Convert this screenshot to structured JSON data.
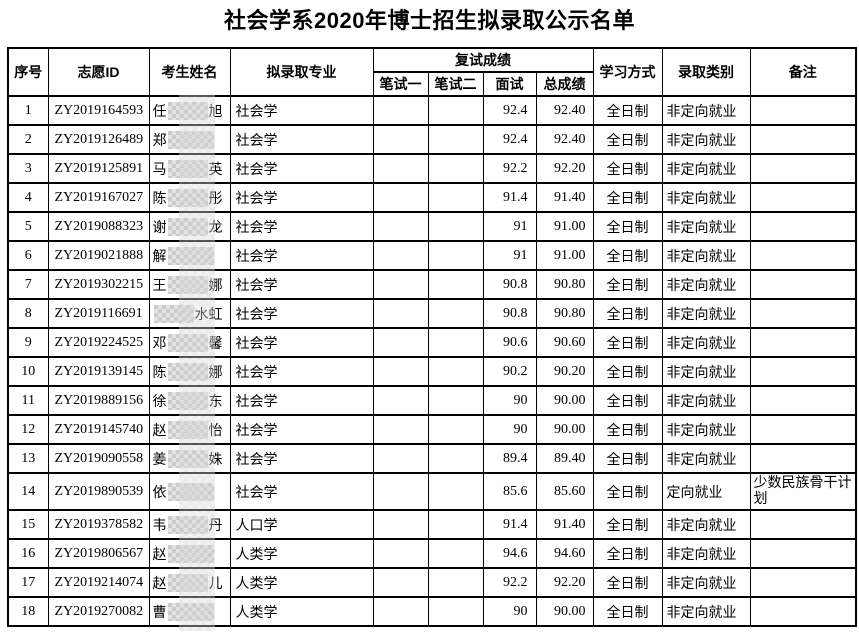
{
  "page": {
    "title": "社会学系2020年博士招生拟录取公示名单"
  },
  "table": {
    "headers": {
      "index": "序号",
      "id": "志愿ID",
      "name": "考生姓名",
      "major": "拟录取专业",
      "retest_group": "复试成绩",
      "written1": "笔试一",
      "written2": "笔试二",
      "interview": "面试",
      "total": "总成绩",
      "study_mode": "学习方式",
      "category": "录取类别",
      "remark": "备注"
    },
    "rows": [
      {
        "index": "1",
        "id": "ZY2019164593",
        "name_prefix": "任",
        "name_suffix": "旭",
        "name_redacted": true,
        "major": "社会学",
        "written1": "",
        "written2": "",
        "interview": "92.4",
        "total": "92.40",
        "study_mode": "全日制",
        "category": "非定向就业",
        "remark": ""
      },
      {
        "index": "2",
        "id": "ZY2019126489",
        "name_prefix": "郑",
        "name_suffix": "",
        "name_redacted": true,
        "major": "社会学",
        "written1": "",
        "written2": "",
        "interview": "92.4",
        "total": "92.40",
        "study_mode": "全日制",
        "category": "非定向就业",
        "remark": ""
      },
      {
        "index": "3",
        "id": "ZY2019125891",
        "name_prefix": "马",
        "name_suffix": "英",
        "name_redacted": true,
        "major": "社会学",
        "written1": "",
        "written2": "",
        "interview": "92.2",
        "total": "92.20",
        "study_mode": "全日制",
        "category": "非定向就业",
        "remark": ""
      },
      {
        "index": "4",
        "id": "ZY2019167027",
        "name_prefix": "陈",
        "name_suffix": "彤",
        "name_redacted": true,
        "major": "社会学",
        "written1": "",
        "written2": "",
        "interview": "91.4",
        "total": "91.40",
        "study_mode": "全日制",
        "category": "非定向就业",
        "remark": ""
      },
      {
        "index": "5",
        "id": "ZY2019088323",
        "name_prefix": "谢",
        "name_suffix": "龙",
        "name_redacted": true,
        "major": "社会学",
        "written1": "",
        "written2": "",
        "interview": "91",
        "total": "91.00",
        "study_mode": "全日制",
        "category": "非定向就业",
        "remark": ""
      },
      {
        "index": "6",
        "id": "ZY2019021888",
        "name_prefix": "解",
        "name_suffix": "",
        "name_redacted": true,
        "major": "社会学",
        "written1": "",
        "written2": "",
        "interview": "91",
        "total": "91.00",
        "study_mode": "全日制",
        "category": "非定向就业",
        "remark": ""
      },
      {
        "index": "7",
        "id": "ZY2019302215",
        "name_prefix": "王",
        "name_suffix": "娜",
        "name_redacted": true,
        "major": "社会学",
        "written1": "",
        "written2": "",
        "interview": "90.8",
        "total": "90.80",
        "study_mode": "全日制",
        "category": "非定向就业",
        "remark": ""
      },
      {
        "index": "8",
        "id": "ZY2019116691",
        "name_prefix": "",
        "name_suffix": "水虹",
        "name_redacted": true,
        "major": "社会学",
        "written1": "",
        "written2": "",
        "interview": "90.8",
        "total": "90.80",
        "study_mode": "全日制",
        "category": "非定向就业",
        "remark": ""
      },
      {
        "index": "9",
        "id": "ZY2019224525",
        "name_prefix": "邓",
        "name_suffix": "馨",
        "name_redacted": true,
        "major": "社会学",
        "written1": "",
        "written2": "",
        "interview": "90.6",
        "total": "90.60",
        "study_mode": "全日制",
        "category": "非定向就业",
        "remark": ""
      },
      {
        "index": "10",
        "id": "ZY2019139145",
        "name_prefix": "陈",
        "name_suffix": "娜",
        "name_redacted": true,
        "major": "社会学",
        "written1": "",
        "written2": "",
        "interview": "90.2",
        "total": "90.20",
        "study_mode": "全日制",
        "category": "非定向就业",
        "remark": ""
      },
      {
        "index": "11",
        "id": "ZY2019889156",
        "name_prefix": "徐",
        "name_suffix": "东",
        "name_redacted": true,
        "major": "社会学",
        "written1": "",
        "written2": "",
        "interview": "90",
        "total": "90.00",
        "study_mode": "全日制",
        "category": "非定向就业",
        "remark": ""
      },
      {
        "index": "12",
        "id": "ZY2019145740",
        "name_prefix": "赵",
        "name_suffix": "怡",
        "name_redacted": true,
        "major": "社会学",
        "written1": "",
        "written2": "",
        "interview": "90",
        "total": "90.00",
        "study_mode": "全日制",
        "category": "非定向就业",
        "remark": ""
      },
      {
        "index": "13",
        "id": "ZY2019090558",
        "name_prefix": "姜",
        "name_suffix": "姝",
        "name_redacted": true,
        "major": "社会学",
        "written1": "",
        "written2": "",
        "interview": "89.4",
        "total": "89.40",
        "study_mode": "全日制",
        "category": "非定向就业",
        "remark": ""
      },
      {
        "index": "14",
        "id": "ZY2019890539",
        "name_prefix": "依",
        "name_suffix": "",
        "name_redacted": true,
        "major": "社会学",
        "written1": "",
        "written2": "",
        "interview": "85.6",
        "total": "85.60",
        "study_mode": "全日制",
        "category": "定向就业",
        "remark": "少数民族骨干计划"
      },
      {
        "index": "15",
        "id": "ZY2019378582",
        "name_prefix": "韦",
        "name_suffix": "丹",
        "name_redacted": true,
        "major": "人口学",
        "written1": "",
        "written2": "",
        "interview": "91.4",
        "total": "91.40",
        "study_mode": "全日制",
        "category": "非定向就业",
        "remark": ""
      },
      {
        "index": "16",
        "id": "ZY2019806567",
        "name_prefix": "赵",
        "name_suffix": "",
        "name_redacted": true,
        "major": "人类学",
        "written1": "",
        "written2": "",
        "interview": "94.6",
        "total": "94.60",
        "study_mode": "全日制",
        "category": "非定向就业",
        "remark": ""
      },
      {
        "index": "17",
        "id": "ZY2019214074",
        "name_prefix": "赵",
        "name_suffix": "儿",
        "name_redacted": true,
        "major": "人类学",
        "written1": "",
        "written2": "",
        "interview": "92.2",
        "total": "92.20",
        "study_mode": "全日制",
        "category": "非定向就业",
        "remark": ""
      },
      {
        "index": "18",
        "id": "ZY2019270082",
        "name_prefix": "曹",
        "name_suffix": "",
        "name_redacted": true,
        "major": "人类学",
        "written1": "",
        "written2": "",
        "interview": "90",
        "total": "90.00",
        "study_mode": "全日制",
        "category": "非定向就业",
        "remark": ""
      }
    ]
  },
  "colors": {
    "text": "#000000",
    "border": "#000000",
    "background": "#ffffff",
    "redaction": "#d6d6d6"
  }
}
